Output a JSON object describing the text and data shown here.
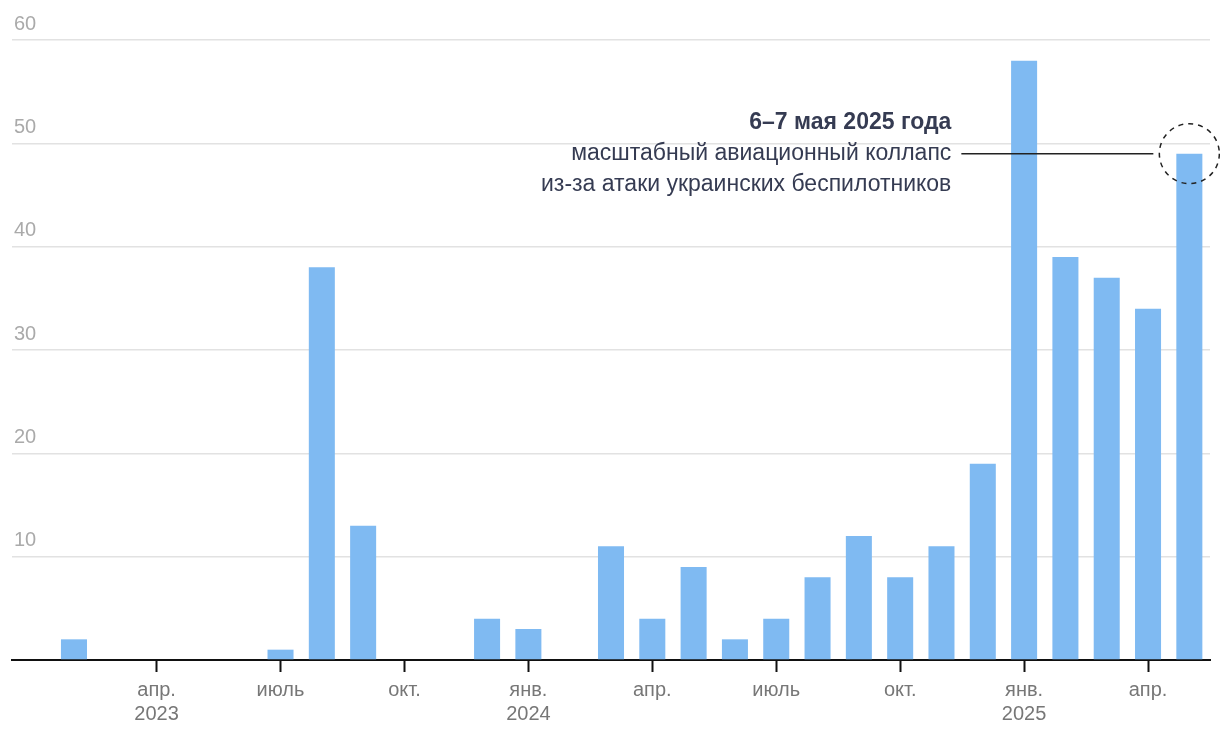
{
  "chart_data": {
    "type": "bar",
    "categories": [
      null,
      null,
      null,
      "апр.\n2023",
      null,
      null,
      "июль",
      null,
      null,
      "окт.",
      null,
      null,
      "янв.\n2024",
      null,
      null,
      "апр.",
      null,
      null,
      "июль",
      null,
      null,
      "окт.",
      null,
      null,
      "янв.\n2025",
      null,
      null,
      "апр.",
      null
    ],
    "values": [
      null,
      2,
      0,
      0,
      0,
      0,
      1,
      38,
      13,
      0,
      0,
      4,
      3,
      0,
      11,
      4,
      9,
      2,
      4,
      8,
      12,
      8,
      11,
      19,
      58,
      39,
      37,
      34,
      49
    ],
    "color": "#7fbaf2",
    "ylim": [
      0,
      60
    ],
    "yticks": [
      {
        "value": 0,
        "label": null
      },
      10,
      20,
      30,
      40,
      50,
      60
    ],
    "grid": "y",
    "annotations": [
      "6–7 мая 2025 года\nмасштабный авиационный коллапс\nиз-за атаки украинских беспилотников"
    ]
  }
}
